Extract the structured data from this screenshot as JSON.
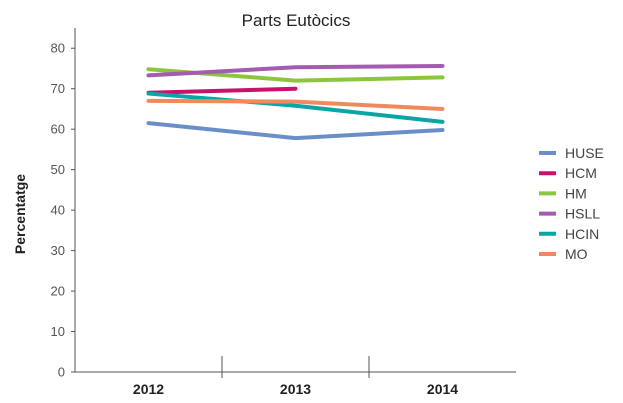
{
  "chart_data": {
    "type": "line",
    "title": "Parts Eutòcics",
    "xlabel": "",
    "ylabel": "Percentatge",
    "categories": [
      "2012",
      "2013",
      "2014"
    ],
    "ylim": [
      0,
      85
    ],
    "yticks": [
      0,
      10,
      20,
      30,
      40,
      50,
      60,
      70,
      80
    ],
    "grid": false,
    "legend_position": "right",
    "series": [
      {
        "name": "HUSE",
        "color": "#6a8fc8",
        "values": [
          61.5,
          57.8,
          59.8
        ]
      },
      {
        "name": "HCM",
        "color": "#c8126e",
        "values": [
          69.0,
          70.0,
          null
        ]
      },
      {
        "name": "HM",
        "color": "#8cc63f",
        "values": [
          74.8,
          72.0,
          72.8
        ]
      },
      {
        "name": "HSLL",
        "color": "#a45cb0",
        "values": [
          73.3,
          75.3,
          75.6
        ]
      },
      {
        "name": "HCIN",
        "color": "#0aa5a5",
        "values": [
          68.8,
          65.8,
          61.8
        ]
      },
      {
        "name": "MO",
        "color": "#f08a5d",
        "values": [
          67.0,
          66.8,
          65.0
        ]
      }
    ]
  }
}
